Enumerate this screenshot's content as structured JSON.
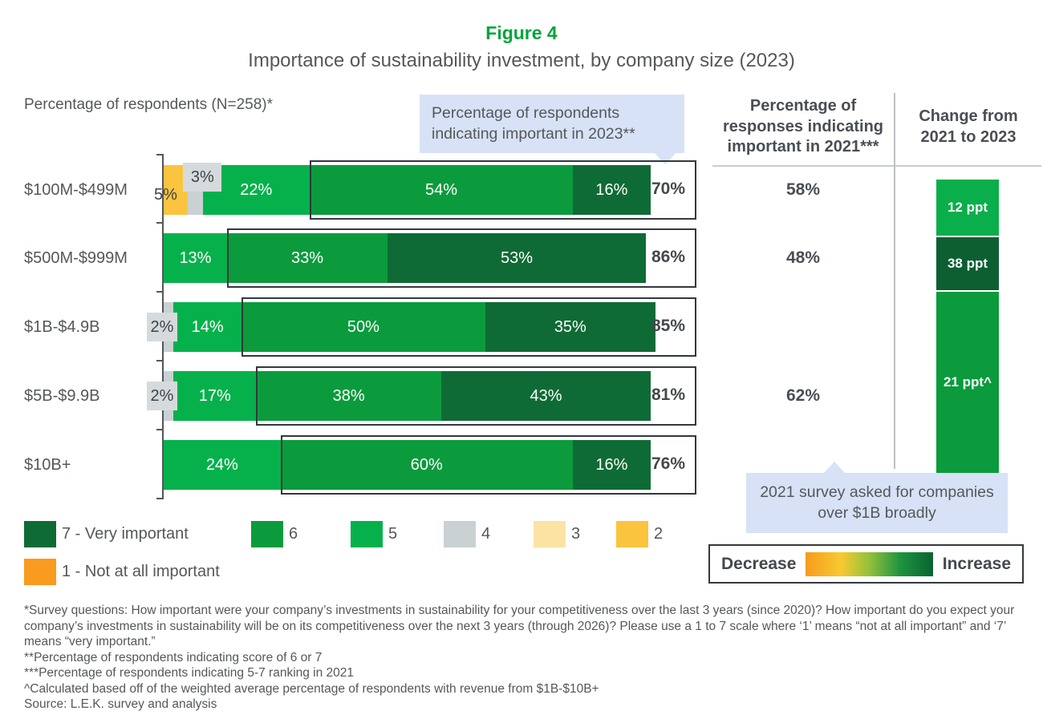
{
  "header": {
    "figure_label": "Figure 4",
    "title": "Importance of sustainability investment, by company size (2023)"
  },
  "axis_title": "Percentage of respondents (N=258)*",
  "callouts": {
    "top": "Percentage of respondents indicating important in 2023**",
    "bottom": "2021 survey asked for companies over $1B broadly"
  },
  "columns": {
    "col2021_header": "Percentage of responses indicating important in 2021***",
    "change_header": "Change from 2021 to 2023"
  },
  "colors": {
    "accent_green": "#00A43D",
    "text_gray": "#54585A",
    "score7": "#0F6B35",
    "score6": "#0B9B3C",
    "score5": "#06B14C",
    "score4": "#C9D1D3",
    "score3": "#FBE3A4",
    "score2": "#FBC43E",
    "score1": "#F89B1E",
    "chip_gray": "#D5DBDD",
    "callout_blue": "#D7E2F6",
    "change_bright": "#0AAE4A",
    "change_dark": "#0B5F31",
    "change_mid": "#0B9B3C"
  },
  "chart_data": {
    "type": "bar",
    "orientation": "horizontal_stacked",
    "title": "Importance of sustainability investment, by company size (2023)",
    "xlabel": "Percentage of respondents (N=258)*",
    "x_range": [
      0,
      100
    ],
    "grid": false,
    "legend_position": "bottom-left",
    "categories": [
      "$100M-$499M",
      "$500M-$999M",
      "$1B-$4.9B",
      "$5B-$9.9B",
      "$10B+"
    ],
    "legend": [
      {
        "score": "7",
        "label": "7 - Very important"
      },
      {
        "score": "6",
        "label": "6"
      },
      {
        "score": "5",
        "label": "5"
      },
      {
        "score": "4",
        "label": "4"
      },
      {
        "score": "3",
        "label": "3"
      },
      {
        "score": "2",
        "label": "2"
      },
      {
        "score": "1",
        "label": "1 - Not at all important"
      }
    ],
    "rows": [
      {
        "label": "$100M-$499M",
        "segments": [
          {
            "score": "2",
            "value": 5,
            "label": "5%",
            "placement": "inside-low"
          },
          {
            "score": "4",
            "value": 3,
            "label": "3%",
            "placement": "chip-above"
          },
          {
            "score": "5",
            "value": 22,
            "label": "22%"
          },
          {
            "score": "6",
            "value": 54,
            "label": "54%"
          },
          {
            "score": "7",
            "value": 16,
            "label": "16%"
          }
        ],
        "total": "70%",
        "important_2021": "58%"
      },
      {
        "label": "$500M-$999M",
        "segments": [
          {
            "score": "5",
            "value": 13,
            "label": "13%"
          },
          {
            "score": "6",
            "value": 33,
            "label": "33%"
          },
          {
            "score": "7",
            "value": 53,
            "label": "53%"
          }
        ],
        "total": "86%",
        "important_2021": "48%"
      },
      {
        "label": "$1B-$4.9B",
        "segments": [
          {
            "score": "4",
            "value": 2,
            "label": "2%",
            "placement": "chip-left"
          },
          {
            "score": "5",
            "value": 14,
            "label": "14%"
          },
          {
            "score": "6",
            "value": 50,
            "label": "50%"
          },
          {
            "score": "7",
            "value": 35,
            "label": "35%"
          }
        ],
        "total": "85%"
      },
      {
        "label": "$5B-$9.9B",
        "segments": [
          {
            "score": "4",
            "value": 2,
            "label": "2%",
            "placement": "chip-left"
          },
          {
            "score": "5",
            "value": 17,
            "label": "17%"
          },
          {
            "score": "6",
            "value": 38,
            "label": "38%"
          },
          {
            "score": "7",
            "value": 43,
            "label": "43%"
          }
        ],
        "total": "81%",
        "important_2021": "62%"
      },
      {
        "label": "$10B+",
        "segments": [
          {
            "score": "5",
            "value": 24,
            "label": "24%"
          },
          {
            "score": "6",
            "value": 60,
            "label": "60%"
          },
          {
            "score": "7",
            "value": 16,
            "label": "16%"
          }
        ],
        "total": "76%"
      }
    ],
    "change_bars": [
      {
        "label": "12 ppt",
        "color_key": "change_bright"
      },
      {
        "label": "38 ppt",
        "color_key": "change_dark"
      },
      {
        "label": "21 ppt^",
        "color_key": "change_mid"
      }
    ]
  },
  "gradient_legend": {
    "decrease": "Decrease",
    "increase": "Increase"
  },
  "footnotes": [
    "*Survey questions: How important were your company’s investments in sustainability for your competitiveness over the last 3 years (since 2020)? How important do you expect your company’s investments in sustainability will be on its competitiveness over the next 3 years (through 2026)? Please use a 1 to 7 scale where ‘1’ means “not at all important” and ‘7’ means “very important.”",
    "**Percentage of respondents indicating score of 6 or 7",
    "***Percentage of respondents indicating 5-7 ranking in 2021",
    "^Calculated based off of the weighted average percentage of respondents with revenue from $1B-$10B+",
    "Source: L.E.K. survey and analysis"
  ]
}
